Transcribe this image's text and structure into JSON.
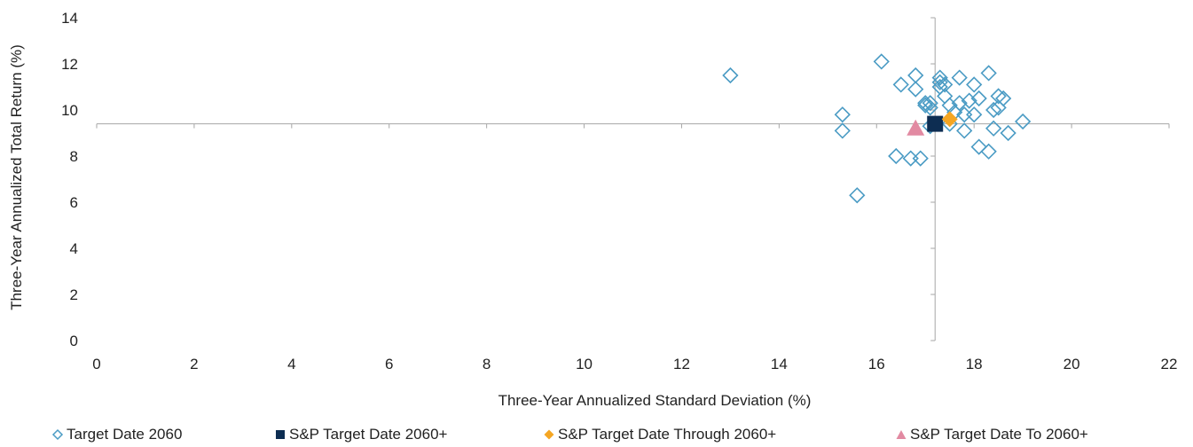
{
  "chart_data": {
    "type": "scatter",
    "title": "",
    "xlabel": "Three-Year Annualized Standard Deviation (%)",
    "ylabel": "Three-Year Annualized Total Return (%)",
    "xlim": [
      0,
      22
    ],
    "ylim": [
      0,
      14
    ],
    "x_ticks": [
      "0",
      "2",
      "4",
      "6",
      "8",
      "10",
      "12",
      "14",
      "16",
      "18",
      "20",
      "22"
    ],
    "y_ticks": [
      "0",
      "2",
      "4",
      "6",
      "8",
      "10",
      "12",
      "14"
    ],
    "crosshair": {
      "x": 17.2,
      "y": 9.4
    },
    "grid": false,
    "legend_position": "bottom",
    "series": [
      {
        "name": "Target Date 2060",
        "marker": "diamond-open",
        "color": "#4a9bc4",
        "points": [
          [
            13.0,
            11.5
          ],
          [
            16.1,
            12.1
          ],
          [
            15.3,
            9.8
          ],
          [
            15.3,
            9.1
          ],
          [
            15.6,
            6.3
          ],
          [
            16.4,
            8.0
          ],
          [
            16.7,
            7.9
          ],
          [
            16.9,
            7.9
          ],
          [
            16.5,
            11.1
          ],
          [
            16.8,
            11.5
          ],
          [
            16.8,
            10.9
          ],
          [
            17.0,
            10.3
          ],
          [
            17.0,
            10.2
          ],
          [
            17.1,
            10.3
          ],
          [
            17.1,
            10.1
          ],
          [
            17.1,
            9.3
          ],
          [
            17.3,
            11.4
          ],
          [
            17.3,
            11.2
          ],
          [
            17.3,
            11.0
          ],
          [
            17.4,
            11.1
          ],
          [
            17.4,
            10.6
          ],
          [
            17.5,
            10.2
          ],
          [
            17.6,
            9.9
          ],
          [
            17.7,
            10.3
          ],
          [
            17.7,
            11.4
          ],
          [
            17.8,
            9.1
          ],
          [
            17.8,
            9.8
          ],
          [
            17.9,
            10.4
          ],
          [
            18.0,
            9.8
          ],
          [
            18.0,
            11.1
          ],
          [
            18.1,
            10.5
          ],
          [
            18.1,
            8.4
          ],
          [
            18.3,
            11.6
          ],
          [
            18.3,
            8.2
          ],
          [
            18.4,
            10.0
          ],
          [
            18.4,
            9.2
          ],
          [
            18.5,
            10.1
          ],
          [
            18.5,
            10.6
          ],
          [
            18.6,
            10.5
          ],
          [
            18.7,
            9.0
          ],
          [
            19.0,
            9.5
          ],
          [
            17.5,
            9.4
          ]
        ]
      },
      {
        "name": "S&P Target Date 2060+",
        "marker": "square",
        "color": "#0d2d52",
        "points": [
          [
            17.2,
            9.4
          ]
        ]
      },
      {
        "name": "S&P Target Date Through 2060+",
        "marker": "diamond",
        "color": "#f5a623",
        "points": [
          [
            17.5,
            9.6
          ]
        ]
      },
      {
        "name": "S&P Target Date To 2060+",
        "marker": "triangle",
        "color": "#e28aa2",
        "points": [
          [
            16.8,
            9.2
          ]
        ]
      }
    ]
  }
}
